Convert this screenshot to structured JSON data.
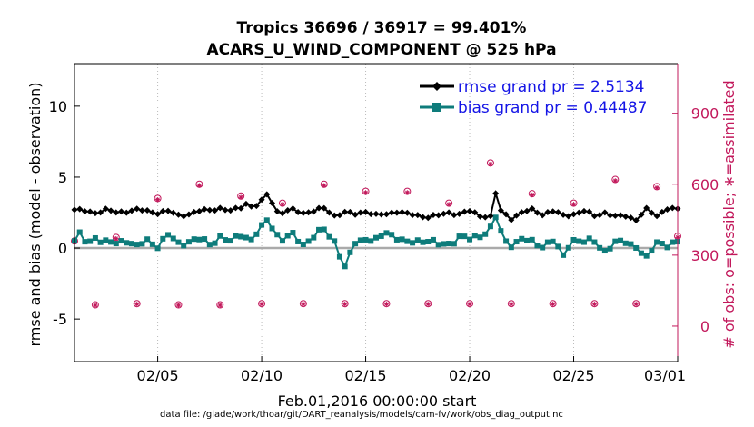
{
  "chart_data": {
    "type": "line",
    "title": "Tropics 36696 / 36917 = 99.401%",
    "subtitle": "ACARS_U_WIND_COMPONENT @ 525 hPa",
    "xlabel": "Feb.01,2016 00:00:00 start",
    "ylabel": "rmse and bias (model - observation)",
    "ylabel_right": "# of obs: o=possible; ∗=assimilated",
    "footer": "data file: /glade/work/thoar/git/DART_reanalysis/models/cam-fv/work/obs_diag_output.nc",
    "xlim": [
      1,
      30
    ],
    "ylim": [
      -8,
      13
    ],
    "ylim_right": [
      -150,
      1110
    ],
    "x_ticks": [
      5,
      10,
      15,
      20,
      25,
      30
    ],
    "x_tick_labels": [
      "02/05",
      "02/10",
      "02/15",
      "02/20",
      "02/25",
      "03/01"
    ],
    "y_ticks": [
      -5,
      0,
      5,
      10
    ],
    "y_tick_labels": [
      "-5",
      "0",
      "5",
      "10"
    ],
    "y_right_ticks": [
      0,
      300,
      600,
      900
    ],
    "y_right_tick_labels": [
      "0",
      "300",
      "600",
      "900"
    ],
    "legend": [
      {
        "label": "rmse grand pr = 2.5134",
        "color": "#000000"
      },
      {
        "label": "bias grand pr = 0.44487",
        "color": "#0e7c7b"
      }
    ],
    "legend_position": "top-right",
    "rmse_knots": [
      [
        1,
        2.7
      ],
      [
        1.5,
        2.6
      ],
      [
        2,
        2.5
      ],
      [
        2.5,
        2.7
      ],
      [
        3,
        2.5
      ],
      [
        3.5,
        2.6
      ],
      [
        4,
        2.7
      ],
      [
        4.5,
        2.6
      ],
      [
        5,
        2.5
      ],
      [
        5.5,
        2.6
      ],
      [
        6,
        2.3
      ],
      [
        6.5,
        2.4
      ],
      [
        7,
        2.6
      ],
      [
        7.5,
        2.7
      ],
      [
        8,
        2.8
      ],
      [
        8.5,
        2.6
      ],
      [
        9,
        2.9
      ],
      [
        9.3,
        3.2
      ],
      [
        9.6,
        2.8
      ],
      [
        10,
        3.3
      ],
      [
        10.3,
        3.9
      ],
      [
        10.7,
        2.6
      ],
      [
        11,
        2.5
      ],
      [
        11.5,
        2.7
      ],
      [
        12,
        2.5
      ],
      [
        12.5,
        2.6
      ],
      [
        13,
        2.8
      ],
      [
        13.5,
        2.3
      ],
      [
        14,
        2.5
      ],
      [
        14.5,
        2.4
      ],
      [
        15,
        2.6
      ],
      [
        15.5,
        2.3
      ],
      [
        16,
        2.4
      ],
      [
        16.5,
        2.6
      ],
      [
        17,
        2.4
      ],
      [
        17.5,
        2.3
      ],
      [
        18,
        2.2
      ],
      [
        18.5,
        2.3
      ],
      [
        19,
        2.5
      ],
      [
        19.5,
        2.4
      ],
      [
        20,
        2.6
      ],
      [
        20.5,
        2.3
      ],
      [
        21,
        2.2
      ],
      [
        21.2,
        4.1
      ],
      [
        21.5,
        2.6
      ],
      [
        22,
        2.1
      ],
      [
        22.5,
        2.5
      ],
      [
        23,
        2.7
      ],
      [
        23.5,
        2.4
      ],
      [
        24,
        2.6
      ],
      [
        24.5,
        2.3
      ],
      [
        25,
        2.4
      ],
      [
        25.5,
        2.6
      ],
      [
        26,
        2.3
      ],
      [
        26.5,
        2.5
      ],
      [
        27,
        2.2
      ],
      [
        27.5,
        2.3
      ],
      [
        28,
        2.0
      ],
      [
        28.5,
        2.7
      ],
      [
        29,
        2.3
      ],
      [
        29.5,
        2.8
      ],
      [
        30,
        2.7
      ]
    ],
    "bias_knots": [
      [
        1,
        0.5
      ],
      [
        1.3,
        1.0
      ],
      [
        1.6,
        0.2
      ],
      [
        2,
        0.8
      ],
      [
        2.5,
        0.4
      ],
      [
        3,
        0.3
      ],
      [
        3.5,
        0.6
      ],
      [
        4,
        0.1
      ],
      [
        4.5,
        0.5
      ],
      [
        5,
        0.2
      ],
      [
        5.5,
        0.9
      ],
      [
        6,
        0.3
      ],
      [
        6.5,
        0.5
      ],
      [
        7,
        0.6
      ],
      [
        7.5,
        0.3
      ],
      [
        8,
        0.8
      ],
      [
        8.5,
        0.4
      ],
      [
        9,
        1.0
      ],
      [
        9.5,
        0.6
      ],
      [
        10,
        1.4
      ],
      [
        10.3,
        2.1
      ],
      [
        10.7,
        1.0
      ],
      [
        11,
        0.6
      ],
      [
        11.5,
        0.9
      ],
      [
        12,
        0.3
      ],
      [
        12.5,
        0.8
      ],
      [
        13,
        1.3
      ],
      [
        13.5,
        0.5
      ],
      [
        14,
        -1.4
      ],
      [
        14.5,
        0.4
      ],
      [
        15,
        0.7
      ],
      [
        15.5,
        0.5
      ],
      [
        16,
        1.1
      ],
      [
        16.5,
        0.8
      ],
      [
        17,
        0.3
      ],
      [
        17.5,
        0.5
      ],
      [
        18,
        0.6
      ],
      [
        18.5,
        0.2
      ],
      [
        19,
        0.3
      ],
      [
        19.5,
        0.8
      ],
      [
        20,
        0.6
      ],
      [
        20.5,
        0.9
      ],
      [
        21,
        1.4
      ],
      [
        21.3,
        2.3
      ],
      [
        21.6,
        0.5
      ],
      [
        22,
        0.3
      ],
      [
        22.5,
        0.6
      ],
      [
        23,
        0.4
      ],
      [
        23.5,
        0.2
      ],
      [
        24,
        0.5
      ],
      [
        24.5,
        -0.6
      ],
      [
        24.8,
        0.4
      ],
      [
        25,
        0.6
      ],
      [
        25.5,
        0.4
      ],
      [
        26,
        0.5
      ],
      [
        26.5,
        -0.2
      ],
      [
        27,
        0.3
      ],
      [
        27.5,
        0.5
      ],
      [
        28,
        0.1
      ],
      [
        28.5,
        -0.8
      ],
      [
        29,
        0.5
      ],
      [
        29.5,
        0.2
      ],
      [
        30,
        0.3
      ]
    ],
    "obs_possible_knots": [
      [
        1,
        360
      ],
      [
        2,
        90
      ],
      [
        3,
        375
      ],
      [
        4,
        95
      ],
      [
        5,
        540
      ],
      [
        6,
        90
      ],
      [
        7,
        600
      ],
      [
        8,
        90
      ],
      [
        9,
        550
      ],
      [
        10,
        95
      ],
      [
        11,
        520
      ],
      [
        12,
        95
      ],
      [
        13,
        600
      ],
      [
        14,
        95
      ],
      [
        15,
        570
      ],
      [
        16,
        95
      ],
      [
        17,
        570
      ],
      [
        18,
        95
      ],
      [
        19,
        520
      ],
      [
        20,
        95
      ],
      [
        21,
        690
      ],
      [
        22,
        95
      ],
      [
        23,
        560
      ],
      [
        24,
        95
      ],
      [
        25,
        520
      ],
      [
        26,
        95
      ],
      [
        27,
        620
      ],
      [
        28,
        95
      ],
      [
        29,
        590
      ],
      [
        30,
        380
      ]
    ],
    "obs_assimilated_knots": [
      [
        1,
        355
      ],
      [
        2,
        88
      ],
      [
        3,
        370
      ],
      [
        4,
        93
      ],
      [
        5,
        535
      ],
      [
        6,
        88
      ],
      [
        7,
        595
      ],
      [
        8,
        88
      ],
      [
        9,
        545
      ],
      [
        10,
        93
      ],
      [
        11,
        515
      ],
      [
        12,
        93
      ],
      [
        13,
        595
      ],
      [
        14,
        93
      ],
      [
        15,
        565
      ],
      [
        16,
        93
      ],
      [
        17,
        565
      ],
      [
        18,
        93
      ],
      [
        19,
        515
      ],
      [
        20,
        93
      ],
      [
        21,
        685
      ],
      [
        22,
        93
      ],
      [
        23,
        555
      ],
      [
        24,
        93
      ],
      [
        25,
        515
      ],
      [
        26,
        93
      ],
      [
        27,
        615
      ],
      [
        28,
        93
      ],
      [
        29,
        585
      ],
      [
        30,
        375
      ]
    ]
  }
}
